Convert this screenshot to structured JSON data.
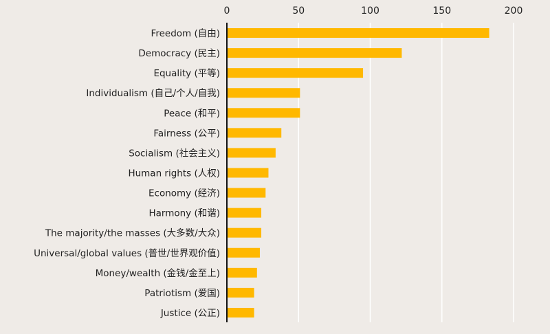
{
  "chart_data": {
    "type": "bar",
    "orientation": "horizontal",
    "title": "",
    "xlabel": "",
    "ylabel": "",
    "xlim": [
      0,
      200
    ],
    "xticks": [
      0,
      50,
      100,
      150,
      200
    ],
    "x_axis_position": "top",
    "grid": true,
    "bar_color": "#ffb800",
    "background_color": "#efebe7",
    "categories": [
      "Freedom (自由)",
      "Democracy (民主)",
      "Equality (平等)",
      "Individualism (自己/个人/自我)",
      "Peace (和平)",
      "Fairness (公平)",
      "Socialism (社会主义)",
      "Human rights (人权)",
      "Economy (经济)",
      "Harmony (和谐)",
      "The majority/the masses (大多数/大众)",
      "Universal/global values (普世/世界观价值)",
      "Money/wealth (金钱/金至上)",
      "Patriotism (爱国)",
      "Justice (公正)"
    ],
    "values": [
      183,
      122,
      95,
      51,
      51,
      38,
      34,
      29,
      27,
      24,
      24,
      23,
      21,
      19,
      19
    ]
  }
}
